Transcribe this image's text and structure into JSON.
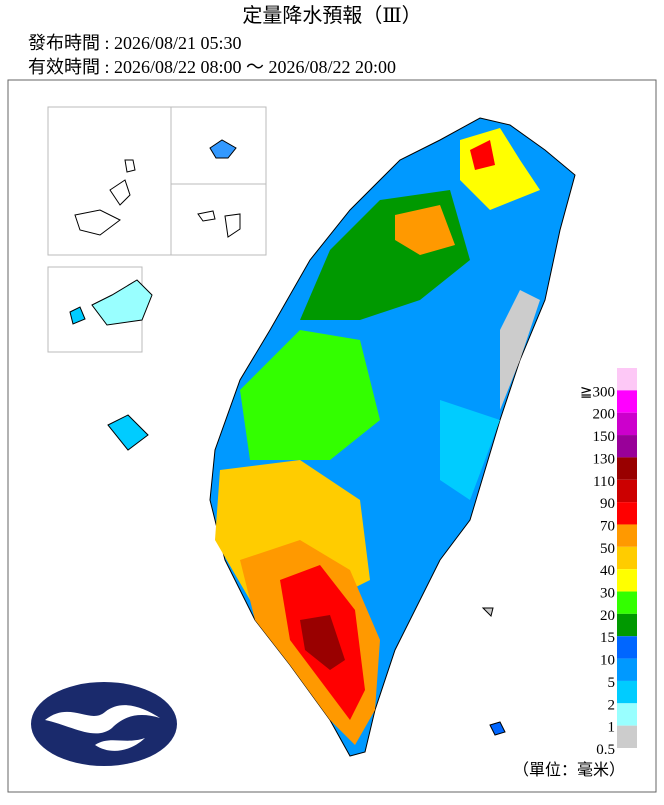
{
  "header": {
    "title": "定量降水預報（Ⅲ）",
    "issued": "發布時間 : 2026/08/21 05:30",
    "valid": "有效時間 : 2026/08/22 08:00 ～ 2026/08/22 20:00"
  },
  "legend": {
    "bins": [
      {
        "label": "≧300",
        "color": "#fdc8f6"
      },
      {
        "label": "200",
        "color": "#ff00ff"
      },
      {
        "label": "150",
        "color": "#cc00cc"
      },
      {
        "label": "130",
        "color": "#990099"
      },
      {
        "label": "110",
        "color": "#990000"
      },
      {
        "label": "90",
        "color": "#cc0000"
      },
      {
        "label": "70",
        "color": "#ff0000"
      },
      {
        "label": "50",
        "color": "#ff9900"
      },
      {
        "label": "40",
        "color": "#ffcc00"
      },
      {
        "label": "30",
        "color": "#ffff00"
      },
      {
        "label": "20",
        "color": "#33ff00"
      },
      {
        "label": "15",
        "color": "#009900"
      },
      {
        "label": "10",
        "color": "#0066ff"
      },
      {
        "label": "5",
        "color": "#0099ff"
      },
      {
        "label": "2",
        "color": "#00ccff"
      },
      {
        "label": "1",
        "color": "#99ffff"
      },
      {
        "label": "0.5",
        "color": "#cccccc"
      }
    ],
    "unit": "（單位：毫米）"
  }
}
